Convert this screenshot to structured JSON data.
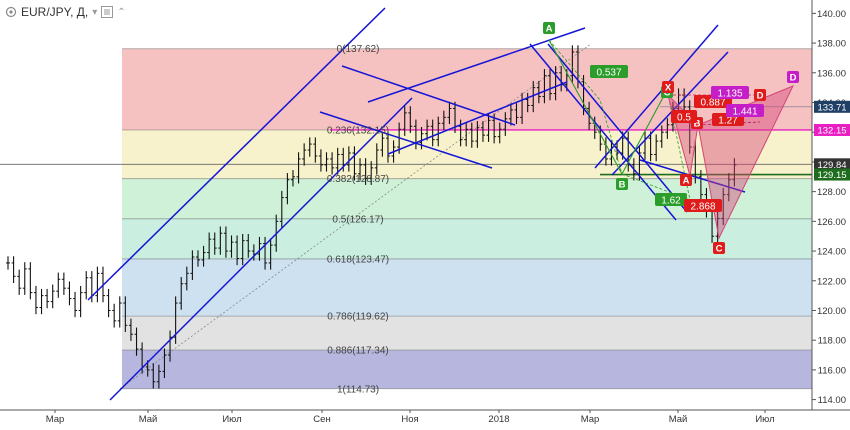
{
  "header": {
    "symbol_label": "EUR/JPY, Д,",
    "dropdown_glyph": "▾",
    "collapse_glyph": "⌃"
  },
  "chart_data": {
    "type": "line",
    "instrument": "EUR/JPY",
    "timeframe": "Д",
    "y_axis": {
      "min": 113.3,
      "max": 140.9,
      "ticks": [
        114.0,
        116.0,
        118.0,
        120.0,
        122.0,
        124.0,
        126.0,
        128.0,
        130.0,
        132.0,
        134.0,
        136.0,
        138.0,
        140.0
      ],
      "tick_labels": [
        "114.00",
        "116.00",
        "118.00",
        "120.00",
        "122.00",
        "124.00",
        "126.00",
        "128.00",
        "130.00",
        "132.00",
        "134.00",
        "136.00",
        "138.00",
        "140.00"
      ]
    },
    "x_axis": {
      "tick_labels": [
        "Мар",
        "Май",
        "Июл",
        "Сен",
        "Ноя",
        "2018",
        "Мар",
        "Май",
        "Июл"
      ]
    },
    "price_series": [
      [
        0,
        123.2
      ],
      [
        2,
        122.3
      ],
      [
        4,
        121.5
      ],
      [
        6,
        122.8
      ],
      [
        8,
        121.2
      ],
      [
        10,
        120.2
      ],
      [
        12,
        121.0
      ],
      [
        14,
        120.6
      ],
      [
        16,
        121.3
      ],
      [
        18,
        122.1
      ],
      [
        20,
        121.5
      ],
      [
        22,
        120.8
      ],
      [
        24,
        120.0
      ],
      [
        26,
        121.2
      ],
      [
        28,
        122.2
      ],
      [
        30,
        121.0
      ],
      [
        32,
        122.5
      ],
      [
        34,
        121.0
      ],
      [
        36,
        120.0
      ],
      [
        38,
        119.3
      ],
      [
        40,
        120.5
      ],
      [
        42,
        119.0
      ],
      [
        44,
        118.4
      ],
      [
        46,
        117.4
      ],
      [
        48,
        116.2
      ],
      [
        50,
        116.0
      ],
      [
        52,
        115.2
      ],
      [
        54,
        115.9
      ],
      [
        56,
        117.0
      ],
      [
        58,
        118.2
      ],
      [
        60,
        120.5
      ],
      [
        62,
        121.8
      ],
      [
        64,
        122.5
      ],
      [
        66,
        123.6
      ],
      [
        68,
        123.4
      ],
      [
        70,
        123.9
      ],
      [
        72,
        124.8
      ],
      [
        74,
        124.2
      ],
      [
        76,
        125.2
      ],
      [
        78,
        124.0
      ],
      [
        80,
        124.6
      ],
      [
        82,
        123.5
      ],
      [
        84,
        124.7
      ],
      [
        86,
        124.0
      ],
      [
        88,
        123.8
      ],
      [
        90,
        124.5
      ],
      [
        92,
        123.2
      ],
      [
        94,
        124.4
      ],
      [
        96,
        126.0
      ],
      [
        98,
        127.6
      ],
      [
        100,
        128.8
      ],
      [
        102,
        129.0
      ],
      [
        104,
        130.2
      ],
      [
        106,
        130.8
      ],
      [
        108,
        131.2
      ],
      [
        110,
        130.4
      ],
      [
        112,
        129.8
      ],
      [
        114,
        130.2
      ],
      [
        116,
        129.6
      ],
      [
        118,
        130.5
      ],
      [
        120,
        129.8
      ],
      [
        122,
        130.6
      ],
      [
        124,
        129.2
      ],
      [
        126,
        129.8
      ],
      [
        128,
        128.9
      ],
      [
        130,
        129.6
      ],
      [
        132,
        130.8
      ],
      [
        134,
        131.6
      ],
      [
        136,
        130.4
      ],
      [
        138,
        131.0
      ],
      [
        140,
        132.2
      ],
      [
        142,
        133.3
      ],
      [
        144,
        132.4
      ],
      [
        146,
        131.3
      ],
      [
        148,
        131.9
      ],
      [
        150,
        132.4
      ],
      [
        152,
        131.5
      ],
      [
        154,
        132.6
      ],
      [
        156,
        133.0
      ],
      [
        158,
        133.6
      ],
      [
        160,
        132.4
      ],
      [
        162,
        131.5
      ],
      [
        164,
        132.2
      ],
      [
        166,
        131.4
      ],
      [
        168,
        132.3
      ],
      [
        170,
        131.8
      ],
      [
        172,
        132.8
      ],
      [
        174,
        131.7
      ],
      [
        176,
        132.2
      ],
      [
        178,
        132.9
      ],
      [
        180,
        133.5
      ],
      [
        182,
        133.0
      ],
      [
        184,
        134.2
      ],
      [
        186,
        133.8
      ],
      [
        188,
        135.0
      ],
      [
        190,
        134.4
      ],
      [
        192,
        135.8
      ],
      [
        194,
        134.6
      ],
      [
        196,
        136.0
      ],
      [
        198,
        135.2
      ],
      [
        200,
        135.8
      ],
      [
        202,
        137.4
      ],
      [
        204,
        135.4
      ],
      [
        206,
        133.6
      ],
      [
        208,
        132.6
      ],
      [
        210,
        132.0
      ],
      [
        212,
        131.2
      ],
      [
        214,
        130.2
      ],
      [
        216,
        131.0
      ],
      [
        218,
        130.6
      ],
      [
        220,
        131.6
      ],
      [
        222,
        129.8
      ],
      [
        224,
        129.2
      ],
      [
        226,
        130.6
      ],
      [
        228,
        131.6
      ],
      [
        230,
        130.5
      ],
      [
        232,
        131.4
      ],
      [
        234,
        132.0
      ],
      [
        236,
        132.5
      ],
      [
        238,
        133.6
      ],
      [
        240,
        134.5
      ],
      [
        242,
        133.7
      ],
      [
        244,
        131.0
      ],
      [
        246,
        129.0
      ],
      [
        248,
        127.8
      ],
      [
        250,
        126.7
      ],
      [
        252,
        125.0
      ],
      [
        254,
        126.2
      ],
      [
        256,
        127.8
      ],
      [
        258,
        128.8
      ],
      [
        260,
        129.8
      ]
    ],
    "price_x_domain": [
      0,
      262
    ],
    "fibonacci_levels": [
      {
        "ratio": 0,
        "price": 137.62,
        "label": "0(137.62)"
      },
      {
        "ratio": 0.236,
        "price": 132.15,
        "label": "0.236(132.15)"
      },
      {
        "ratio": 0.382,
        "price": 128.87,
        "label": "0.382(128.87)"
      },
      {
        "ratio": 0.5,
        "price": 126.17,
        "label": "0.5(126.17)"
      },
      {
        "ratio": 0.618,
        "price": 123.47,
        "label": "0.618(123.47)"
      },
      {
        "ratio": 0.786,
        "price": 119.62,
        "label": "0.786(119.62)"
      },
      {
        "ratio": 0.886,
        "price": 117.34,
        "label": "0.886(117.34)"
      },
      {
        "ratio": 1,
        "price": 114.73,
        "label": "1(114.73)"
      }
    ],
    "fibonacci_zone_colors": [
      "#f3b6b6",
      "#f6f0c2",
      "#c6eed0",
      "#c1ecdc",
      "#c5dcef",
      "#dddddd",
      "#a9a9d8"
    ],
    "price_tags": [
      {
        "value": "133.71",
        "price": 133.71,
        "bg": "#1f3f66"
      },
      {
        "value": "132.15",
        "price": 132.15,
        "bg": "#e91ec3"
      },
      {
        "value": "129.84",
        "price": 129.84,
        "bg": "#333333"
      },
      {
        "value": "129.15",
        "price": 129.15,
        "bg": "#1e6d1e"
      }
    ],
    "pattern_labels": [
      {
        "text": "A",
        "color": "#2a9d2a"
      },
      {
        "text": "B",
        "color": "#2a9d2a"
      },
      {
        "text": "C",
        "color": "#2a9d2a"
      },
      {
        "text": "X",
        "color": "#e01b1b"
      },
      {
        "text": "A",
        "color": "#e01b1b"
      },
      {
        "text": "B",
        "color": "#e01b1b"
      },
      {
        "text": "C",
        "color": "#e01b1b"
      },
      {
        "text": "D",
        "color": "#e01b1b"
      },
      {
        "text": "D",
        "color": "#c51ec8"
      }
    ],
    "ratio_labels": [
      {
        "text": "0.537",
        "color": "#2a9d2a"
      },
      {
        "text": "1.62",
        "color": "#2a9d2a"
      },
      {
        "text": "0.5",
        "color": "#e01b1b"
      },
      {
        "text": "1.27",
        "color": "#e01b1b"
      },
      {
        "text": "0.887",
        "color": "#e01b1b"
      },
      {
        "text": "2.868",
        "color": "#e01b1b"
      },
      {
        "text": "1.135",
        "color": "#c51ec8"
      },
      {
        "text": "1.441",
        "color": "#c51ec8"
      }
    ],
    "colors": {
      "channel_lines": "#1414d6",
      "price_bars": "#111111",
      "pink_level": "#e91ec3",
      "green_level": "#1e6d1e",
      "harmonic_fill": "#d4457a",
      "abc_pattern": "#2a9d2a",
      "gray_level": "#666666"
    },
    "grid": false,
    "legend": "none"
  }
}
